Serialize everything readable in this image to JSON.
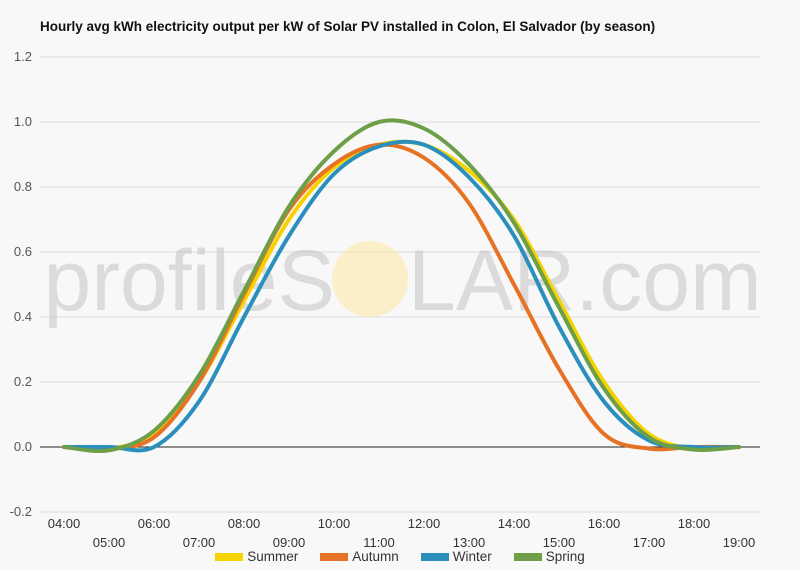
{
  "chart_data": {
    "type": "line",
    "title": "Hourly avg kWh electricity output per kW of Solar PV installed in Colon, El Salvador (by season)",
    "watermark": "profileSOLAR.com",
    "xlabel": "",
    "ylabel": "",
    "x_labels": [
      "04:00",
      "05:00",
      "06:00",
      "07:00",
      "08:00",
      "09:00",
      "10:00",
      "11:00",
      "12:00",
      "13:00",
      "14:00",
      "15:00",
      "16:00",
      "17:00",
      "18:00",
      "19:00"
    ],
    "ylim": [
      -0.2,
      1.2
    ],
    "yticks": [
      "-0.2",
      "0.0",
      "0.2",
      "0.4",
      "0.6",
      "0.8",
      "1.0",
      "1.2"
    ],
    "grid": true,
    "legend_position": "bottom",
    "series": [
      {
        "name": "Summer",
        "color": "#f5d300",
        "values": [
          0,
          -0.005,
          0.04,
          0.2,
          0.45,
          0.7,
          0.86,
          0.93,
          0.93,
          0.85,
          0.7,
          0.45,
          0.2,
          0.04,
          -0.005,
          0
        ]
      },
      {
        "name": "Autumn",
        "color": "#e67325",
        "values": [
          0,
          -0.005,
          0.03,
          0.2,
          0.47,
          0.73,
          0.87,
          0.93,
          0.89,
          0.75,
          0.5,
          0.24,
          0.04,
          -0.005,
          0,
          0
        ]
      },
      {
        "name": "Winter",
        "color": "#2a8fbd",
        "values": [
          0,
          0,
          0,
          0.14,
          0.4,
          0.65,
          0.84,
          0.925,
          0.93,
          0.83,
          0.65,
          0.37,
          0.14,
          0.02,
          0,
          0
        ]
      },
      {
        "name": "Spring",
        "color": "#6d9f48",
        "values": [
          0,
          -0.01,
          0.05,
          0.22,
          0.48,
          0.74,
          0.91,
          1.0,
          0.98,
          0.87,
          0.69,
          0.43,
          0.18,
          0.03,
          -0.008,
          0
        ]
      }
    ]
  }
}
